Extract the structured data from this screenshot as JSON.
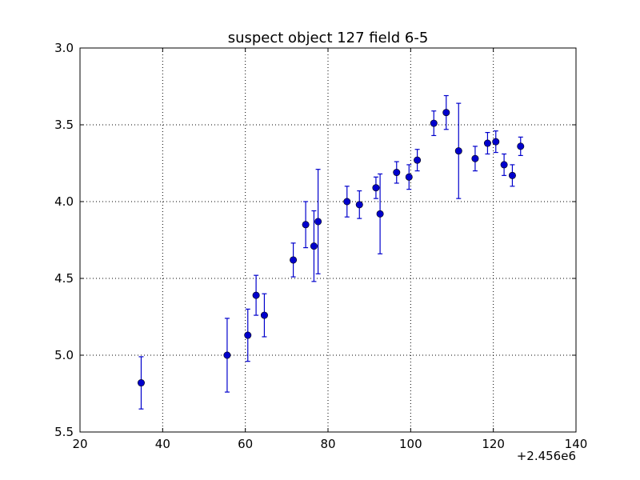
{
  "chart_data": {
    "type": "scatter",
    "title": "suspect object 127 field 6-5",
    "xlabel": "",
    "ylabel": "",
    "x_offset_label": "+2.456e6",
    "xlim": [
      20,
      140
    ],
    "ylim": [
      3.0,
      5.5
    ],
    "y_inverted": true,
    "grid": true,
    "x_ticks": [
      20,
      40,
      60,
      80,
      100,
      120,
      140
    ],
    "x_tick_labels": [
      "20",
      "40",
      "60",
      "80",
      "100",
      "120",
      "140"
    ],
    "y_ticks": [
      3.0,
      3.5,
      4.0,
      4.5,
      5.0,
      5.5
    ],
    "y_tick_labels": [
      "3.0",
      "3.5",
      "4.0",
      "4.5",
      "5.0",
      "5.5"
    ],
    "marker_color": "#0000cc",
    "errorbar_color": "#0000cc",
    "series": [
      {
        "points": [
          {
            "x": 34.8,
            "y": 5.18,
            "err": 0.17
          },
          {
            "x": 55.6,
            "y": 5.0,
            "err": 0.24
          },
          {
            "x": 60.6,
            "y": 4.87,
            "err": 0.17
          },
          {
            "x": 62.6,
            "y": 4.61,
            "err": 0.13
          },
          {
            "x": 64.6,
            "y": 4.74,
            "err": 0.14
          },
          {
            "x": 71.6,
            "y": 4.38,
            "err": 0.11
          },
          {
            "x": 74.6,
            "y": 4.15,
            "err": 0.15
          },
          {
            "x": 76.6,
            "y": 4.29,
            "err": 0.23
          },
          {
            "x": 77.6,
            "y": 4.13,
            "err": 0.34
          },
          {
            "x": 84.6,
            "y": 4.0,
            "err": 0.1
          },
          {
            "x": 87.6,
            "y": 4.02,
            "err": 0.09
          },
          {
            "x": 91.6,
            "y": 3.91,
            "err": 0.07
          },
          {
            "x": 92.6,
            "y": 4.08,
            "err": 0.26
          },
          {
            "x": 96.6,
            "y": 3.81,
            "err": 0.07
          },
          {
            "x": 99.6,
            "y": 3.84,
            "err": 0.08
          },
          {
            "x": 101.6,
            "y": 3.73,
            "err": 0.07
          },
          {
            "x": 105.6,
            "y": 3.49,
            "err": 0.08
          },
          {
            "x": 108.6,
            "y": 3.42,
            "err": 0.11
          },
          {
            "x": 111.6,
            "y": 3.67,
            "err": 0.31
          },
          {
            "x": 115.6,
            "y": 3.72,
            "err": 0.08
          },
          {
            "x": 118.6,
            "y": 3.62,
            "err": 0.07
          },
          {
            "x": 120.6,
            "y": 3.61,
            "err": 0.07
          },
          {
            "x": 122.6,
            "y": 3.76,
            "err": 0.07
          },
          {
            "x": 124.6,
            "y": 3.83,
            "err": 0.07
          },
          {
            "x": 126.6,
            "y": 3.64,
            "err": 0.06
          }
        ]
      }
    ]
  }
}
